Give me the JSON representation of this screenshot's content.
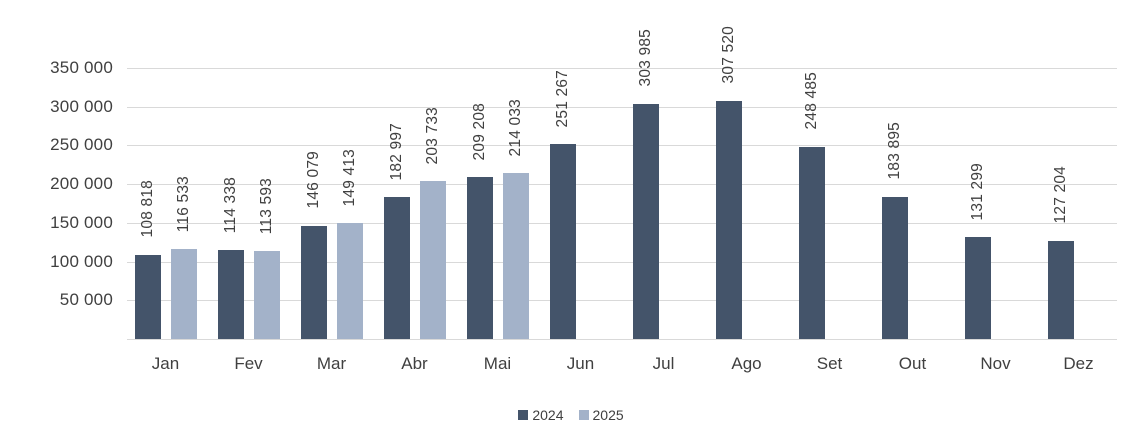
{
  "chart_data": {
    "type": "bar",
    "title": "",
    "categories": [
      "Jan",
      "Fev",
      "Mar",
      "Abr",
      "Mai",
      "Jun",
      "Jul",
      "Ago",
      "Set",
      "Out",
      "Nov",
      "Dez"
    ],
    "series": [
      {
        "name": "2024",
        "color": "#44546a",
        "values": [
          108818,
          114338,
          146079,
          182997,
          209208,
          251267,
          303985,
          307520,
          248485,
          183895,
          131299,
          127204
        ],
        "labels": [
          "108 818",
          "114 338",
          "146 079",
          "182 997",
          "209 208",
          "251 267",
          "303 985",
          "307 520",
          "248 485",
          "183 895",
          "131 299",
          "127 204"
        ]
      },
      {
        "name": "2025",
        "color": "#a3b2c9",
        "values": [
          116533,
          113593,
          149413,
          203733,
          214033,
          null,
          null,
          null,
          null,
          null,
          null,
          null
        ],
        "labels": [
          "116 533",
          "113 593",
          "149 413",
          "203 733",
          "214 033",
          null,
          null,
          null,
          null,
          null,
          null,
          null
        ]
      }
    ],
    "y_axis": {
      "min": 0,
      "max": 350000,
      "tick_step": 50000,
      "tick_labels": [
        "50 000",
        "100 000",
        "150 000",
        "200 000",
        "250 000",
        "300 000",
        "350 000"
      ]
    },
    "grid": true,
    "legend_position": "bottom",
    "colors": {
      "axis_text": "#404040",
      "gridline": "#d9d9d9",
      "series_2024": "#44546a",
      "series_2025": "#a3b2c9"
    }
  }
}
